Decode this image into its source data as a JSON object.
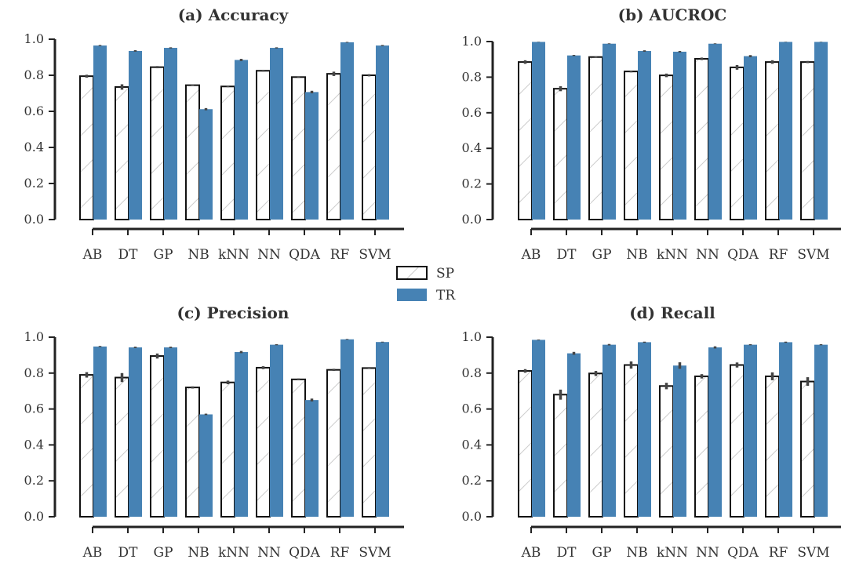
{
  "chart_data": [
    {
      "type": "bar",
      "title": "(a) Accuracy",
      "categories": [
        "AB",
        "DT",
        "GP",
        "NB",
        "kNN",
        "NN",
        "QDA",
        "RF",
        "SVM"
      ],
      "ylim": [
        0,
        1.0
      ],
      "yticks": [
        "0.0",
        "0.2",
        "0.4",
        "0.6",
        "0.8",
        "1.0"
      ],
      "series": [
        {
          "name": "SP",
          "values": [
            0.795,
            0.735,
            0.845,
            0.745,
            0.738,
            0.825,
            0.79,
            0.808,
            0.8
          ],
          "errors": [
            0.008,
            0.015,
            0.006,
            0.004,
            0.004,
            0.005,
            0.004,
            0.012,
            0.006
          ]
        },
        {
          "name": "TR",
          "values": [
            0.965,
            0.935,
            0.952,
            0.612,
            0.885,
            0.952,
            0.707,
            0.983,
            0.965
          ],
          "errors": [
            0.003,
            0.004,
            0.003,
            0.006,
            0.006,
            0.003,
            0.007,
            0.002,
            0.003
          ]
        }
      ]
    },
    {
      "type": "bar",
      "title": "(b) AUCROC",
      "categories": [
        "AB",
        "DT",
        "GP",
        "NB",
        "kNN",
        "NN",
        "QDA",
        "RF",
        "SVM"
      ],
      "ylim": [
        0,
        1.0
      ],
      "yticks": [
        "0.0",
        "0.2",
        "0.4",
        "0.6",
        "0.8",
        "1.0"
      ],
      "series": [
        {
          "name": "SP",
          "values": [
            0.885,
            0.735,
            0.913,
            0.832,
            0.81,
            0.903,
            0.855,
            0.885,
            0.885
          ],
          "errors": [
            0.01,
            0.014,
            0.004,
            0.005,
            0.01,
            0.007,
            0.013,
            0.01,
            0.006
          ]
        },
        {
          "name": "TR",
          "values": [
            0.998,
            0.922,
            0.988,
            0.947,
            0.943,
            0.988,
            0.918,
            0.998,
            0.998
          ],
          "errors": [
            0.001,
            0.003,
            0.002,
            0.004,
            0.004,
            0.002,
            0.006,
            0.001,
            0.001
          ]
        }
      ]
    },
    {
      "type": "bar",
      "title": "(c) Precision",
      "categories": [
        "AB",
        "DT",
        "GP",
        "NB",
        "kNN",
        "NN",
        "QDA",
        "RF",
        "SVM"
      ],
      "ylim": [
        0,
        1.0
      ],
      "yticks": [
        "0.0",
        "0.2",
        "0.4",
        "0.6",
        "0.8",
        "1.0"
      ],
      "series": [
        {
          "name": "SP",
          "values": [
            0.79,
            0.775,
            0.895,
            0.72,
            0.748,
            0.83,
            0.765,
            0.818,
            0.828
          ],
          "errors": [
            0.015,
            0.025,
            0.014,
            0.006,
            0.01,
            0.008,
            0.005,
            0.006,
            0.005
          ]
        },
        {
          "name": "TR",
          "values": [
            0.948,
            0.943,
            0.943,
            0.57,
            0.917,
            0.958,
            0.65,
            0.988,
            0.973
          ],
          "errors": [
            0.003,
            0.004,
            0.004,
            0.004,
            0.006,
            0.003,
            0.008,
            0.002,
            0.002
          ]
        }
      ]
    },
    {
      "type": "bar",
      "title": "(d) Recall",
      "categories": [
        "AB",
        "DT",
        "GP",
        "NB",
        "kNN",
        "NN",
        "QDA",
        "RF",
        "SVM"
      ],
      "ylim": [
        0,
        1.0
      ],
      "yticks": [
        "0.0",
        "0.2",
        "0.4",
        "0.6",
        "0.8",
        "1.0"
      ],
      "series": [
        {
          "name": "SP",
          "values": [
            0.812,
            0.68,
            0.798,
            0.845,
            0.728,
            0.782,
            0.845,
            0.782,
            0.753
          ],
          "errors": [
            0.01,
            0.028,
            0.014,
            0.02,
            0.018,
            0.012,
            0.014,
            0.022,
            0.024
          ]
        },
        {
          "name": "TR",
          "values": [
            0.985,
            0.91,
            0.958,
            0.972,
            0.842,
            0.943,
            0.958,
            0.972,
            0.958
          ],
          "errors": [
            0.002,
            0.008,
            0.004,
            0.003,
            0.018,
            0.006,
            0.003,
            0.003,
            0.003
          ]
        }
      ]
    }
  ],
  "legend": {
    "items": [
      {
        "label": "SP"
      },
      {
        "label": "TR"
      }
    ]
  },
  "colors": {
    "SP_edge": "#111111",
    "SP_fill": "#ffffff",
    "SP_hatch": "#cccccc",
    "TR_fill": "#4682b4",
    "axis": "#222222",
    "error_bar": "#444444",
    "text": "#333333"
  }
}
